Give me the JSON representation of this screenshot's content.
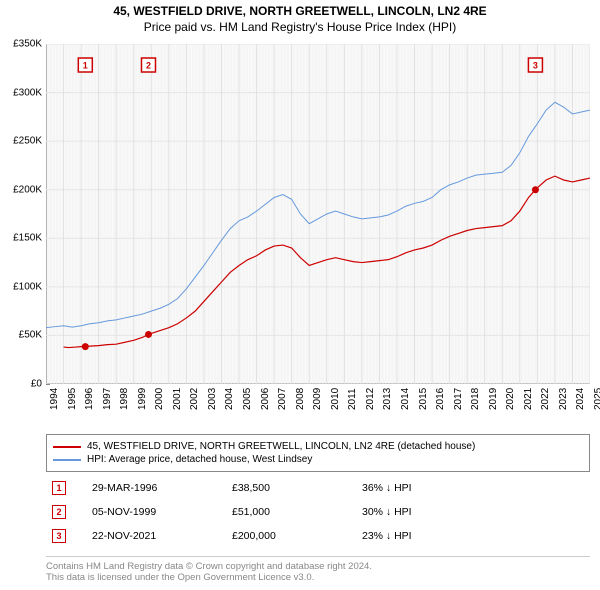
{
  "title": {
    "line1": "45, WESTFIELD DRIVE, NORTH GREETWELL, LINCOLN, LN2 4RE",
    "line2": "Price paid vs. HM Land Registry's House Price Index (HPI)"
  },
  "chart": {
    "type": "line",
    "background_color": "#fafafa",
    "grid_color": "#e0e0e0",
    "grid_color_minor": "#f0f0f0",
    "axis_color": "#888888",
    "ylim": [
      0,
      350000
    ],
    "ytick_step": 50000,
    "yticks": [
      "£0",
      "£50K",
      "£100K",
      "£150K",
      "£200K",
      "£250K",
      "£300K",
      "£350K"
    ],
    "xlim": [
      1994,
      2025
    ],
    "xticks": [
      "1994",
      "1995",
      "1996",
      "1997",
      "1998",
      "1999",
      "2000",
      "2001",
      "2002",
      "2003",
      "2004",
      "2005",
      "2006",
      "2007",
      "2008",
      "2009",
      "2010",
      "2011",
      "2012",
      "2013",
      "2014",
      "2015",
      "2016",
      "2017",
      "2018",
      "2019",
      "2020",
      "2021",
      "2022",
      "2023",
      "2024",
      "2025"
    ],
    "label_fontsize": 10,
    "series": [
      {
        "id": "price_paid",
        "color": "#cc0000",
        "width": 1.2,
        "points": [
          [
            1995.0,
            38000
          ],
          [
            1995.3,
            37500
          ],
          [
            1995.7,
            38000
          ],
          [
            1996.0,
            38500
          ],
          [
            1996.5,
            39000
          ],
          [
            1997.0,
            39500
          ],
          [
            1997.5,
            40500
          ],
          [
            1998.0,
            41000
          ],
          [
            1998.5,
            43000
          ],
          [
            1999.0,
            45000
          ],
          [
            1999.5,
            48000
          ],
          [
            1999.84,
            51000
          ],
          [
            2000.0,
            52000
          ],
          [
            2000.5,
            55000
          ],
          [
            2001.0,
            58000
          ],
          [
            2001.5,
            62000
          ],
          [
            2002.0,
            68000
          ],
          [
            2002.5,
            75000
          ],
          [
            2003.0,
            85000
          ],
          [
            2003.5,
            95000
          ],
          [
            2004.0,
            105000
          ],
          [
            2004.5,
            115000
          ],
          [
            2005.0,
            122000
          ],
          [
            2005.5,
            128000
          ],
          [
            2006.0,
            132000
          ],
          [
            2006.5,
            138000
          ],
          [
            2007.0,
            142000
          ],
          [
            2007.5,
            143000
          ],
          [
            2008.0,
            140000
          ],
          [
            2008.5,
            130000
          ],
          [
            2009.0,
            122000
          ],
          [
            2009.5,
            125000
          ],
          [
            2010.0,
            128000
          ],
          [
            2010.5,
            130000
          ],
          [
            2011.0,
            128000
          ],
          [
            2011.5,
            126000
          ],
          [
            2012.0,
            125000
          ],
          [
            2012.5,
            126000
          ],
          [
            2013.0,
            127000
          ],
          [
            2013.5,
            128000
          ],
          [
            2014.0,
            131000
          ],
          [
            2014.5,
            135000
          ],
          [
            2015.0,
            138000
          ],
          [
            2015.5,
            140000
          ],
          [
            2016.0,
            143000
          ],
          [
            2016.5,
            148000
          ],
          [
            2017.0,
            152000
          ],
          [
            2017.5,
            155000
          ],
          [
            2018.0,
            158000
          ],
          [
            2018.5,
            160000
          ],
          [
            2019.0,
            161000
          ],
          [
            2019.5,
            162000
          ],
          [
            2020.0,
            163000
          ],
          [
            2020.5,
            168000
          ],
          [
            2021.0,
            178000
          ],
          [
            2021.5,
            192000
          ],
          [
            2021.89,
            200000
          ],
          [
            2022.0,
            202000
          ],
          [
            2022.5,
            210000
          ],
          [
            2023.0,
            214000
          ],
          [
            2023.5,
            210000
          ],
          [
            2024.0,
            208000
          ],
          [
            2024.5,
            210000
          ],
          [
            2025.0,
            212000
          ]
        ]
      },
      {
        "id": "hpi",
        "color": "#6699dd",
        "width": 1.0,
        "points": [
          [
            1994.0,
            58000
          ],
          [
            1994.5,
            59000
          ],
          [
            1995.0,
            60000
          ],
          [
            1995.5,
            58500
          ],
          [
            1996.0,
            60000
          ],
          [
            1996.5,
            62000
          ],
          [
            1997.0,
            63000
          ],
          [
            1997.5,
            65000
          ],
          [
            1998.0,
            66000
          ],
          [
            1998.5,
            68000
          ],
          [
            1999.0,
            70000
          ],
          [
            1999.5,
            72000
          ],
          [
            2000.0,
            75000
          ],
          [
            2000.5,
            78000
          ],
          [
            2001.0,
            82000
          ],
          [
            2001.5,
            88000
          ],
          [
            2002.0,
            98000
          ],
          [
            2002.5,
            110000
          ],
          [
            2003.0,
            122000
          ],
          [
            2003.5,
            135000
          ],
          [
            2004.0,
            148000
          ],
          [
            2004.5,
            160000
          ],
          [
            2005.0,
            168000
          ],
          [
            2005.5,
            172000
          ],
          [
            2006.0,
            178000
          ],
          [
            2006.5,
            185000
          ],
          [
            2007.0,
            192000
          ],
          [
            2007.5,
            195000
          ],
          [
            2008.0,
            190000
          ],
          [
            2008.5,
            175000
          ],
          [
            2009.0,
            165000
          ],
          [
            2009.5,
            170000
          ],
          [
            2010.0,
            175000
          ],
          [
            2010.5,
            178000
          ],
          [
            2011.0,
            175000
          ],
          [
            2011.5,
            172000
          ],
          [
            2012.0,
            170000
          ],
          [
            2012.5,
            171000
          ],
          [
            2013.0,
            172000
          ],
          [
            2013.5,
            174000
          ],
          [
            2014.0,
            178000
          ],
          [
            2014.5,
            183000
          ],
          [
            2015.0,
            186000
          ],
          [
            2015.5,
            188000
          ],
          [
            2016.0,
            192000
          ],
          [
            2016.5,
            200000
          ],
          [
            2017.0,
            205000
          ],
          [
            2017.5,
            208000
          ],
          [
            2018.0,
            212000
          ],
          [
            2018.5,
            215000
          ],
          [
            2019.0,
            216000
          ],
          [
            2019.5,
            217000
          ],
          [
            2020.0,
            218000
          ],
          [
            2020.5,
            225000
          ],
          [
            2021.0,
            238000
          ],
          [
            2021.5,
            255000
          ],
          [
            2022.0,
            268000
          ],
          [
            2022.5,
            282000
          ],
          [
            2023.0,
            290000
          ],
          [
            2023.5,
            285000
          ],
          [
            2024.0,
            278000
          ],
          [
            2024.5,
            280000
          ],
          [
            2025.0,
            282000
          ]
        ]
      }
    ],
    "markers": [
      {
        "n": "1",
        "x": 1996.24,
        "y": 38500
      },
      {
        "n": "2",
        "x": 1999.84,
        "y": 51000
      },
      {
        "n": "3",
        "x": 2021.89,
        "y": 200000
      }
    ]
  },
  "legend": {
    "items": [
      {
        "color": "#cc0000",
        "label": "45, WESTFIELD DRIVE, NORTH GREETWELL, LINCOLN, LN2 4RE (detached house)"
      },
      {
        "color": "#6699dd",
        "label": "HPI: Average price, detached house, West Lindsey"
      }
    ]
  },
  "marker_table": [
    {
      "n": "1",
      "date": "29-MAR-1996",
      "price": "£38,500",
      "pct": "36% ↓ HPI"
    },
    {
      "n": "2",
      "date": "05-NOV-1999",
      "price": "£51,000",
      "pct": "30% ↓ HPI"
    },
    {
      "n": "3",
      "date": "22-NOV-2021",
      "price": "£200,000",
      "pct": "23% ↓ HPI"
    }
  ],
  "footer": {
    "line1": "Contains HM Land Registry data © Crown copyright and database right 2024.",
    "line2": "This data is licensed under the Open Government Licence v3.0."
  },
  "marker_dot_color": "#cc0000",
  "marker_badge_border": "#cc0000"
}
